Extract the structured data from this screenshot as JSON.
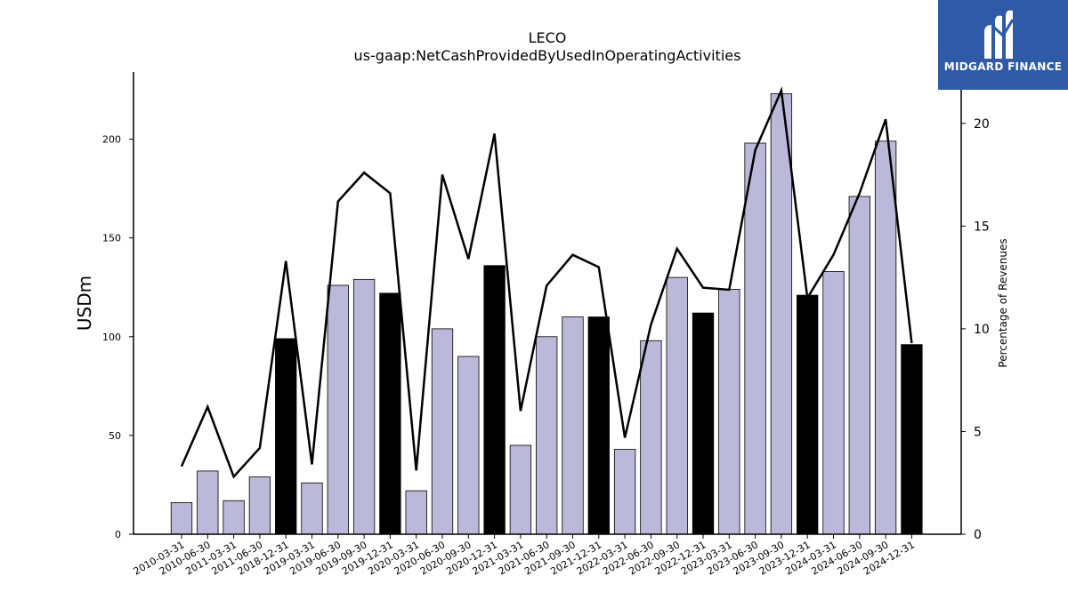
{
  "logo": {
    "text": "MIDGARD FINANCE",
    "icon": "midgard-m-logo-icon",
    "background": "#2f5aa8"
  },
  "chart_data": {
    "type": "bar",
    "title": "LECO",
    "subtitle": "us-gaap:NetCashProvidedByUsedInOperatingActivities",
    "ylabel": "USDm",
    "ylabel_right": "Percentage of Revenues",
    "ylim": [
      0,
      234
    ],
    "ylim_right": [
      0,
      22.5
    ],
    "yticks": [
      0,
      50,
      100,
      150,
      200
    ],
    "yticks_right": [
      0,
      5,
      10,
      15,
      20
    ],
    "grid": false,
    "colors": {
      "quarter_bar": "#bcb8da",
      "annual_bar": "#000000",
      "line": "#000000"
    },
    "categories": [
      "2010-03-31",
      "2010-06-30",
      "2011-03-31",
      "2011-06-30",
      "2018-12-31",
      "2019-03-31",
      "2019-06-30",
      "2019-09-30",
      "2019-12-31",
      "2020-03-31",
      "2020-06-30",
      "2020-09-30",
      "2020-12-31",
      "2021-03-31",
      "2021-06-30",
      "2021-09-30",
      "2021-12-31",
      "2022-03-31",
      "2022-06-30",
      "2022-09-30",
      "2022-12-31",
      "2023-03-31",
      "2023-06-30",
      "2023-09-30",
      "2023-12-31",
      "2024-03-31",
      "2024-06-30",
      "2024-09-30",
      "2024-12-31"
    ],
    "bar_kind": [
      "q",
      "q",
      "q",
      "q",
      "a",
      "q",
      "q",
      "q",
      "a",
      "q",
      "q",
      "q",
      "a",
      "q",
      "q",
      "q",
      "a",
      "q",
      "q",
      "q",
      "a",
      "q",
      "q",
      "q",
      "a",
      "q",
      "q",
      "q",
      "a"
    ],
    "series": [
      {
        "type": "bar",
        "axis": "left",
        "values": [
          16,
          32,
          17,
          29,
          99,
          26,
          126,
          129,
          122,
          22,
          104,
          90,
          136,
          45,
          100,
          110,
          110,
          43,
          98,
          130,
          112,
          124,
          198,
          223,
          121,
          133,
          171,
          199,
          96
        ]
      },
      {
        "type": "line",
        "axis": "right",
        "values": [
          3.3,
          6.2,
          2.8,
          4.2,
          13.3,
          3.4,
          16.2,
          17.6,
          16.6,
          3.1,
          17.5,
          13.4,
          19.5,
          6.0,
          12.1,
          13.6,
          13.0,
          4.7,
          10.2,
          13.9,
          12.0,
          11.9,
          18.7,
          21.6,
          11.5,
          13.6,
          16.6,
          20.2,
          9.3
        ]
      }
    ]
  }
}
